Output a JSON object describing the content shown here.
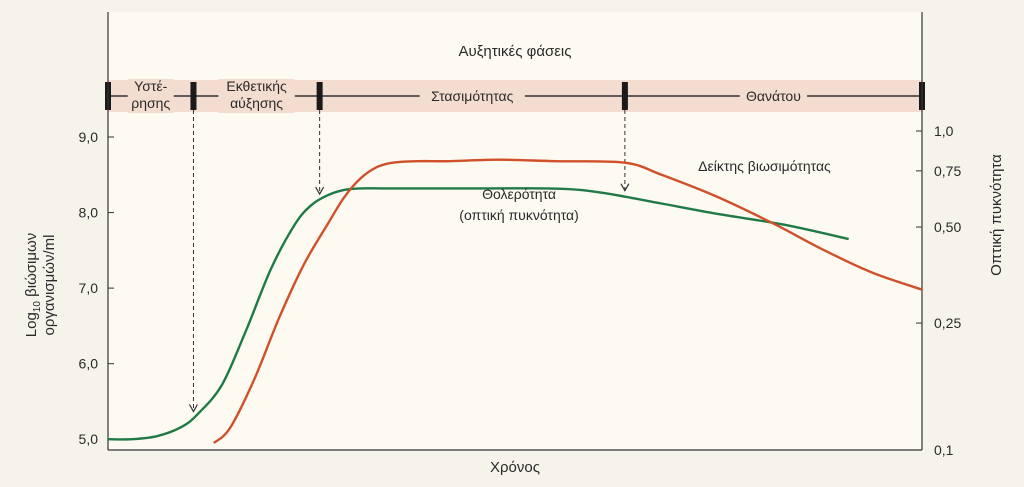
{
  "chart_data": {
    "type": "line",
    "xlabel": "Χρόνος",
    "ylabel_left": "Log10 βιώσιμων οργανισμών/ml",
    "ylabel_left_parts": {
      "pre": "Log",
      "sub": "10",
      "post": " βιώσιμων",
      "line2": "οργανισμών/ml"
    },
    "ylabel_right": "Οπτική πυκνότητα",
    "ylim_left": [
      4.95,
      9.0
    ],
    "ylim_right": [
      0.1,
      1.0
    ],
    "y_left_ticks": [
      "9,0",
      "8,0",
      "7,0",
      "6,0",
      "5,0"
    ],
    "y_left_tick_values": [
      9.0,
      8.0,
      7.0,
      6.0,
      5.0
    ],
    "y_right_ticks": [
      "1,0",
      "0,75",
      "0,50",
      "0,25",
      "0,1"
    ],
    "y_right_tick_values": [
      1.0,
      0.75,
      0.5,
      0.25,
      0.1
    ],
    "right_scale": "log",
    "xlim": [
      0,
      100
    ],
    "phases_title": "Αυξητικές φάσεις",
    "phases": [
      {
        "lines": [
          "Υστέ-",
          "ρησης"
        ],
        "start": 0,
        "end": 10.5
      },
      {
        "lines": [
          "Εκθετικής",
          "αύξησης"
        ],
        "start": 10.5,
        "end": 26
      },
      {
        "lines": [
          "Στασιμότητας"
        ],
        "start": 26,
        "end": 63.5
      },
      {
        "lines": [
          "Θανάτου"
        ],
        "start": 63.5,
        "end": 100
      }
    ],
    "phase_boundaries": [
      0,
      10.5,
      26,
      63.5,
      100
    ],
    "series": [
      {
        "name": "Θολερότητα (οπτική πυκνότητα)",
        "label_lines": [
          "Θολερότητα",
          "(οπτική πυκνότητα)"
        ],
        "axis": "left",
        "color": "#1f7a45",
        "x": [
          0,
          3,
          6,
          9,
          11,
          14,
          17,
          20,
          23,
          25,
          27,
          29,
          31,
          34,
          40,
          47,
          54,
          58,
          62,
          68,
          75,
          83,
          91
        ],
        "y": [
          5.0,
          5.0,
          5.04,
          5.16,
          5.33,
          5.72,
          6.45,
          7.25,
          7.85,
          8.1,
          8.23,
          8.3,
          8.32,
          8.32,
          8.32,
          8.32,
          8.32,
          8.3,
          8.24,
          8.12,
          7.98,
          7.84,
          7.65
        ]
      },
      {
        "name": "Δείκτης βιωσιμότητας",
        "label_lines": [
          "Δείκτης βιωσιμότητας"
        ],
        "axis": "left",
        "color": "#d0502a",
        "x": [
          13,
          15,
          18,
          21,
          24,
          27,
          29,
          31,
          33,
          35,
          38,
          42,
          48,
          55,
          63.5,
          68,
          75,
          82,
          88,
          94,
          100
        ],
        "y": [
          4.95,
          5.15,
          5.8,
          6.6,
          7.3,
          7.85,
          8.2,
          8.45,
          8.6,
          8.66,
          8.68,
          8.68,
          8.7,
          8.68,
          8.66,
          8.5,
          8.2,
          7.84,
          7.5,
          7.2,
          6.98
        ]
      }
    ],
    "arrows_at": [
      10.5,
      26,
      63.5
    ],
    "grid": false
  }
}
